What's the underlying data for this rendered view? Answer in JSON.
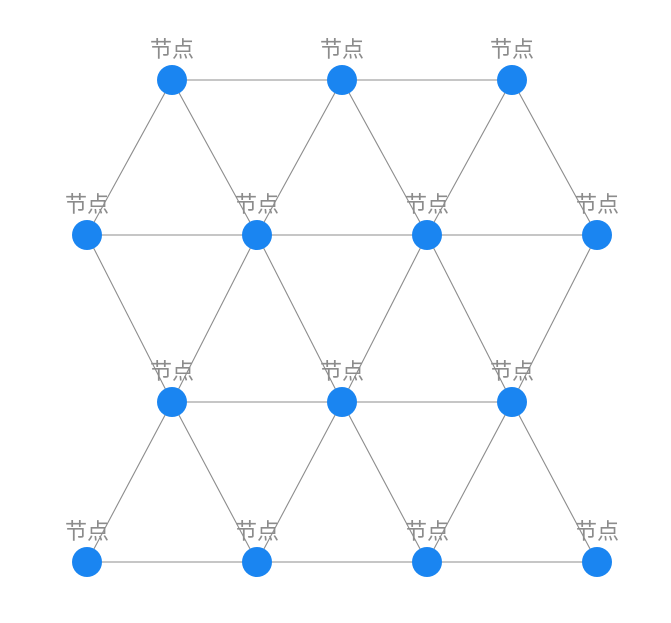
{
  "diagram": {
    "type": "network-graph",
    "node_color": "#1a85f1",
    "edge_color": "#8c8c8c",
    "label_color": "#8c8c8c",
    "rows": [
      {
        "name": "row-1",
        "nodes": [
          {
            "id": "n1",
            "label": "节点"
          },
          {
            "id": "n2",
            "label": "节点"
          },
          {
            "id": "n3",
            "label": "节点"
          }
        ]
      },
      {
        "name": "row-2",
        "nodes": [
          {
            "id": "n4",
            "label": "节点"
          },
          {
            "id": "n5",
            "label": "节点"
          },
          {
            "id": "n6",
            "label": "节点"
          },
          {
            "id": "n7",
            "label": "节点"
          }
        ]
      },
      {
        "name": "row-3",
        "nodes": [
          {
            "id": "n8",
            "label": "节点"
          },
          {
            "id": "n9",
            "label": "节点"
          },
          {
            "id": "n10",
            "label": "节点"
          }
        ]
      },
      {
        "name": "row-4",
        "nodes": [
          {
            "id": "n11",
            "label": "节点"
          },
          {
            "id": "n12",
            "label": "节点"
          },
          {
            "id": "n13",
            "label": "节点"
          },
          {
            "id": "n14",
            "label": "节点"
          }
        ]
      }
    ],
    "edges": [
      [
        "n1",
        "n2"
      ],
      [
        "n2",
        "n3"
      ],
      [
        "n1",
        "n4"
      ],
      [
        "n1",
        "n5"
      ],
      [
        "n2",
        "n5"
      ],
      [
        "n2",
        "n6"
      ],
      [
        "n3",
        "n6"
      ],
      [
        "n3",
        "n7"
      ],
      [
        "n4",
        "n5"
      ],
      [
        "n5",
        "n6"
      ],
      [
        "n6",
        "n7"
      ],
      [
        "n4",
        "n8"
      ],
      [
        "n5",
        "n8"
      ],
      [
        "n5",
        "n9"
      ],
      [
        "n6",
        "n9"
      ],
      [
        "n6",
        "n10"
      ],
      [
        "n7",
        "n10"
      ],
      [
        "n8",
        "n9"
      ],
      [
        "n9",
        "n10"
      ],
      [
        "n8",
        "n11"
      ],
      [
        "n8",
        "n12"
      ],
      [
        "n9",
        "n12"
      ],
      [
        "n9",
        "n13"
      ],
      [
        "n10",
        "n13"
      ],
      [
        "n10",
        "n14"
      ],
      [
        "n11",
        "n12"
      ],
      [
        "n12",
        "n13"
      ],
      [
        "n13",
        "n14"
      ]
    ]
  }
}
